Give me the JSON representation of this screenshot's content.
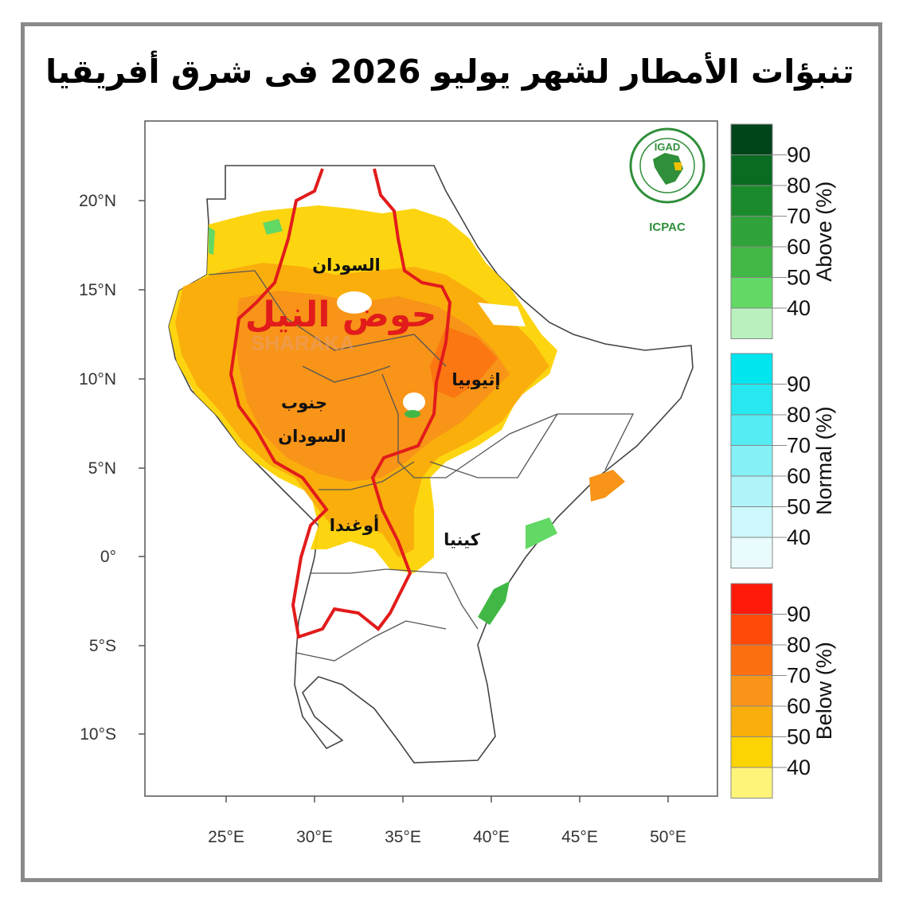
{
  "title": "تنبؤات الأمطار لشهر يوليو 2026 فى شرق أفريقيا",
  "map": {
    "lat_ticks": [
      "20°N",
      "15°N",
      "10°N",
      "5°N",
      "0°",
      "5°S",
      "10°S"
    ],
    "lon_ticks": [
      "25°E",
      "30°E",
      "35°E",
      "40°E",
      "45°E",
      "50°E"
    ],
    "region_labels": {
      "sudan": "السودان",
      "nile_basin": "حوض النيل",
      "ethiopia": "إثيوبيا",
      "south_sudan_1": "جنوب",
      "south_sudan_2": "السودان",
      "uganda": "أوغندا",
      "kenya": "كينيا"
    },
    "watermark": "SHARAKA"
  },
  "logo": {
    "top": "IGAD",
    "bottom": "ICPAC"
  },
  "colorbars": [
    {
      "name": "Above (%)",
      "levels": [
        "90",
        "80",
        "70",
        "60",
        "50",
        "40"
      ],
      "colors": [
        "#00441b",
        "#0a6b22",
        "#1b8a2c",
        "#2fa33a",
        "#41b845",
        "#62d865",
        "#b9f0bd"
      ]
    },
    {
      "name": "Normal (%)",
      "levels": [
        "90",
        "80",
        "70",
        "60",
        "50",
        "40"
      ],
      "colors": [
        "#00e5ee",
        "#27e8f0",
        "#55ecf3",
        "#85f0f5",
        "#aef4f8",
        "#cdf7fa",
        "#e9fbfc"
      ]
    },
    {
      "name": "Below (%)",
      "levels": [
        "90",
        "80",
        "70",
        "60",
        "50",
        "40"
      ],
      "colors": [
        "#ff1a0a",
        "#ff4a0a",
        "#fb6f10",
        "#f89418",
        "#faae0c",
        "#fcd303",
        "#fff47a"
      ]
    }
  ],
  "colors": {
    "frame": "#8a8a8a",
    "nile_outline": "#e21b1b"
  }
}
